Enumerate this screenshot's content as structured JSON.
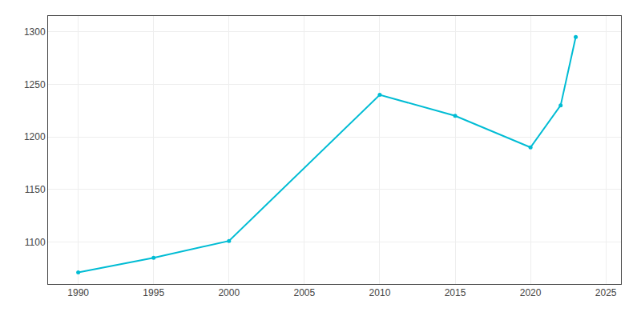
{
  "chart_data": {
    "type": "line",
    "x": [
      1990,
      1995,
      2000,
      2010,
      2015,
      2020,
      2022,
      2023
    ],
    "values": [
      1071,
      1085,
      1101,
      1240,
      1220,
      1190,
      1230,
      1295
    ],
    "color": "#00bcd4",
    "marker": "circle",
    "xlim": [
      1988,
      2026
    ],
    "ylim": [
      1060,
      1315
    ],
    "xticks": [
      1990,
      1995,
      2000,
      2005,
      2010,
      2015,
      2020,
      2025
    ],
    "yticks": [
      1100,
      1150,
      1200,
      1250,
      1300
    ],
    "grid": true
  }
}
